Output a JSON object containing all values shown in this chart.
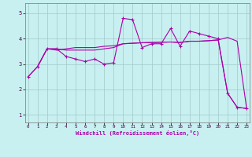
{
  "xlabel": "Windchill (Refroidissement éolien,°C)",
  "background_color": "#c8f0f0",
  "grid_color": "#a0c8c8",
  "line_color": "#aa00aa",
  "x_ticks": [
    0,
    1,
    2,
    3,
    4,
    5,
    6,
    7,
    8,
    9,
    10,
    11,
    12,
    13,
    14,
    15,
    16,
    17,
    18,
    19,
    20,
    21,
    22,
    23
  ],
  "y_ticks": [
    1,
    2,
    3,
    4,
    5
  ],
  "ylim": [
    0.7,
    5.4
  ],
  "xlim": [
    -0.3,
    23.3
  ],
  "series1_x": [
    0,
    1,
    2,
    3,
    4,
    5,
    6,
    7,
    8,
    9,
    10,
    11,
    12,
    13,
    14,
    15,
    16,
    17,
    18,
    19,
    20,
    21,
    22,
    23
  ],
  "series1_y": [
    2.5,
    2.9,
    3.6,
    3.6,
    3.3,
    3.2,
    3.1,
    3.2,
    3.0,
    3.05,
    4.8,
    4.75,
    3.65,
    3.8,
    3.8,
    4.4,
    3.7,
    4.3,
    4.2,
    4.1,
    4.0,
    1.85,
    1.3,
    1.25
  ],
  "series2_x": [
    0,
    1,
    2,
    3,
    4,
    5,
    6,
    7,
    8,
    9,
    10,
    11,
    12,
    13,
    14,
    15,
    16,
    17,
    18,
    19,
    20,
    21,
    22,
    23
  ],
  "series2_y": [
    2.5,
    2.9,
    3.6,
    3.6,
    3.55,
    3.55,
    3.55,
    3.55,
    3.6,
    3.65,
    3.8,
    3.82,
    3.84,
    3.85,
    3.86,
    3.87,
    3.85,
    3.9,
    3.9,
    3.92,
    3.95,
    1.85,
    1.3,
    1.25
  ],
  "series3_x": [
    1,
    2,
    3,
    4,
    5,
    6,
    7,
    8,
    9,
    10,
    11,
    12,
    13,
    14,
    15,
    16,
    17,
    18,
    19,
    20,
    21,
    22,
    23
  ],
  "series3_y": [
    2.9,
    3.6,
    3.55,
    3.6,
    3.65,
    3.65,
    3.65,
    3.7,
    3.72,
    3.8,
    3.82,
    3.84,
    3.85,
    3.86,
    3.87,
    3.85,
    3.9,
    3.9,
    3.92,
    3.95,
    4.05,
    3.9,
    1.25
  ]
}
